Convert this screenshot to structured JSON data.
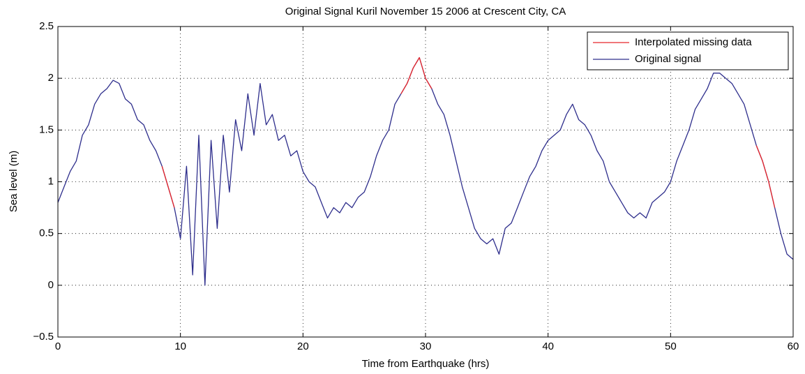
{
  "chart_data": {
    "type": "line",
    "title": "Original Signal Kuril November 15 2006 at Crescent City, CA",
    "xlabel": "Time from Earthquake (hrs)",
    "ylabel": "Sea level (m)",
    "x": [
      0,
      0.5,
      1,
      1.5,
      2,
      2.5,
      3,
      3.5,
      4,
      4.5,
      5,
      5.5,
      6,
      6.5,
      7,
      7.5,
      8,
      8.5,
      9,
      9.5,
      10,
      10.5,
      11,
      11.5,
      12,
      12.5,
      13,
      13.5,
      14,
      14.5,
      15,
      15.5,
      16,
      16.5,
      17,
      17.5,
      18,
      18.5,
      19,
      19.5,
      20,
      20.5,
      21,
      21.5,
      22,
      22.5,
      23,
      23.5,
      24,
      24.5,
      25,
      25.5,
      26,
      26.5,
      27,
      27.5,
      28,
      28.5,
      29,
      29.5,
      30,
      30.5,
      31,
      31.5,
      32,
      32.5,
      33,
      33.5,
      34,
      34.5,
      35,
      35.5,
      36,
      36.5,
      37,
      37.5,
      38,
      38.5,
      39,
      39.5,
      40,
      40.5,
      41,
      41.5,
      42,
      42.5,
      43,
      43.5,
      44,
      44.5,
      45,
      45.5,
      46,
      46.5,
      47,
      47.5,
      48,
      48.5,
      49,
      49.5,
      50,
      50.5,
      51,
      51.5,
      52,
      52.5,
      53,
      53.5,
      54,
      54.5,
      55,
      55.5,
      56,
      56.5,
      57,
      57.5,
      58,
      58.5,
      59,
      59.5,
      60
    ],
    "series": [
      {
        "name": "Original signal",
        "color": "#2e2e8c",
        "values": [
          0.8,
          0.95,
          1.1,
          1.2,
          1.45,
          1.55,
          1.75,
          1.85,
          1.9,
          1.98,
          1.95,
          1.8,
          1.75,
          1.6,
          1.55,
          1.4,
          1.3,
          1.15,
          0.95,
          0.75,
          0.45,
          1.15,
          0.1,
          1.45,
          0.0,
          1.4,
          0.55,
          1.45,
          0.9,
          1.6,
          1.3,
          1.85,
          1.45,
          1.95,
          1.55,
          1.65,
          1.4,
          1.45,
          1.25,
          1.3,
          1.1,
          1.0,
          0.95,
          0.8,
          0.65,
          0.75,
          0.7,
          0.8,
          0.75,
          0.85,
          0.9,
          1.05,
          1.25,
          1.4,
          1.5,
          1.75,
          1.85,
          1.95,
          2.1,
          2.2,
          2.0,
          1.9,
          1.75,
          1.65,
          1.45,
          1.2,
          0.95,
          0.75,
          0.55,
          0.45,
          0.4,
          0.45,
          0.3,
          0.55,
          0.6,
          0.75,
          0.9,
          1.05,
          1.15,
          1.3,
          1.4,
          1.45,
          1.5,
          1.65,
          1.75,
          1.6,
          1.55,
          1.45,
          1.3,
          1.2,
          1.0,
          0.9,
          0.8,
          0.7,
          0.65,
          0.7,
          0.65,
          0.8,
          0.85,
          0.9,
          1.0,
          1.2,
          1.35,
          1.5,
          1.7,
          1.8,
          1.9,
          2.05,
          2.05,
          2.0,
          1.95,
          1.85,
          1.75,
          1.55,
          1.35,
          1.2,
          1.0,
          0.75,
          0.5,
          0.3,
          0.25
        ]
      },
      {
        "name": "Interpolated missing data",
        "color": "#e8262a",
        "values": [
          null,
          null,
          null,
          null,
          null,
          null,
          null,
          null,
          null,
          null,
          null,
          null,
          null,
          null,
          null,
          null,
          null,
          1.15,
          0.95,
          0.75,
          null,
          null,
          null,
          null,
          null,
          null,
          null,
          null,
          null,
          null,
          null,
          null,
          null,
          null,
          null,
          null,
          null,
          null,
          null,
          null,
          null,
          null,
          null,
          null,
          null,
          null,
          null,
          null,
          null,
          null,
          null,
          null,
          null,
          null,
          null,
          null,
          1.85,
          1.95,
          2.1,
          2.2,
          2.0,
          1.9,
          null,
          null,
          null,
          null,
          null,
          null,
          null,
          null,
          null,
          null,
          null,
          null,
          null,
          null,
          null,
          null,
          null,
          null,
          null,
          null,
          null,
          null,
          null,
          null,
          null,
          null,
          null,
          null,
          null,
          null,
          null,
          null,
          null,
          null,
          null,
          null,
          null,
          null,
          null,
          null,
          null,
          null,
          null,
          null,
          null,
          null,
          null,
          null,
          null,
          null,
          null,
          null,
          1.35,
          1.2,
          1.0,
          0.75,
          null,
          null,
          null
        ]
      }
    ],
    "legend_order": [
      "Interpolated missing data",
      "Original signal"
    ],
    "xlim": [
      0,
      60
    ],
    "xticks": [
      0,
      10,
      20,
      30,
      40,
      50,
      60
    ],
    "ylim": [
      -0.5,
      2.5
    ],
    "yticks": [
      {
        "value": -0.5,
        "label": "−0.5"
      },
      0,
      0.5,
      1,
      1.5,
      2,
      2.5
    ],
    "grid": true,
    "legend": "upper right"
  }
}
